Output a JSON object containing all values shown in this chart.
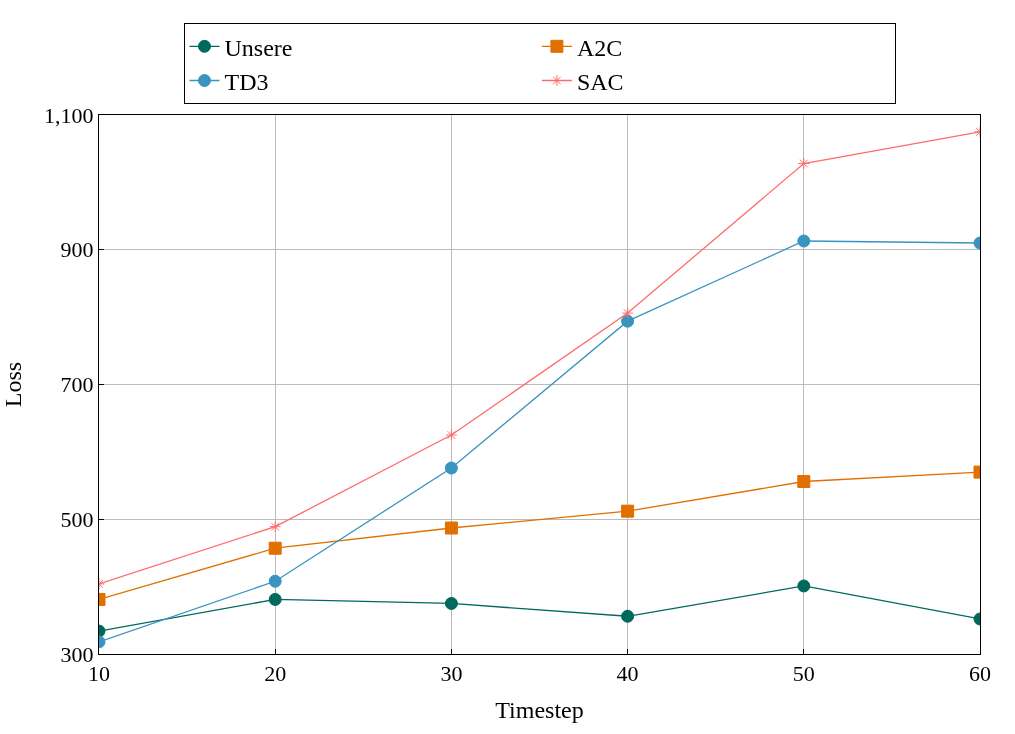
{
  "chart_data": {
    "type": "line",
    "xlabel": "Timestep",
    "ylabel": "Loss",
    "x": [
      10,
      20,
      30,
      40,
      50,
      60
    ],
    "series": [
      {
        "name": "Unsere",
        "color": "#00695c",
        "marker": "circle",
        "values": [
          334,
          381,
          375,
          356,
          401,
          352
        ]
      },
      {
        "name": "A2C",
        "color": "#e07000",
        "marker": "square",
        "values": [
          381,
          457,
          487,
          512,
          556,
          570
        ]
      },
      {
        "name": "TD3",
        "color": "#3a94c0",
        "marker": "circle",
        "values": [
          318,
          408,
          576,
          794,
          913,
          910
        ]
      },
      {
        "name": "SAC",
        "color": "#ff6b6b",
        "marker": "cross",
        "values": [
          404,
          489,
          625,
          806,
          1028,
          1075
        ]
      }
    ],
    "xlim": [
      10,
      60
    ],
    "xticks": [
      10,
      20,
      30,
      40,
      50,
      60
    ],
    "ylim": [
      300,
      1100
    ],
    "yticks": [
      300,
      500,
      700,
      900,
      {
        "value": 1100,
        "label": "1,100"
      }
    ],
    "grid": true,
    "legend": "top"
  }
}
